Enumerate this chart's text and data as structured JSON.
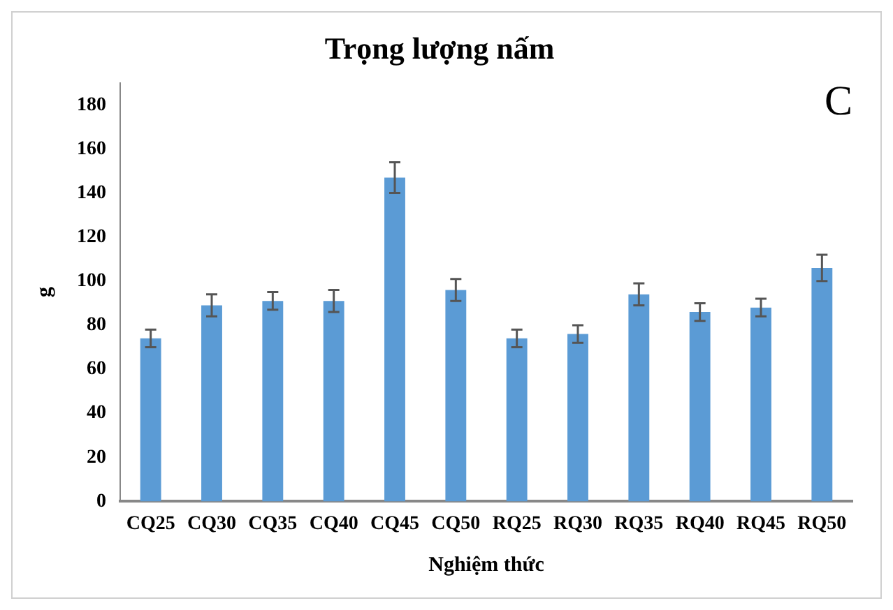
{
  "chart_data": {
    "type": "bar",
    "title": "Trọng lượng nấm",
    "xlabel": "Nghiệm thức",
    "ylabel": "g",
    "annotations": [
      "C"
    ],
    "categories": [
      "CQ25",
      "CQ30",
      "CQ35",
      "CQ40",
      "CQ45",
      "CQ50",
      "RQ25",
      "RQ30",
      "RQ35",
      "RQ40",
      "RQ45",
      "RQ50"
    ],
    "values": [
      74,
      89,
      91,
      91,
      147,
      96,
      74,
      76,
      94,
      86,
      88,
      106
    ],
    "errors": [
      4,
      5,
      4,
      5,
      7,
      5,
      4,
      4,
      5,
      4,
      4,
      6
    ],
    "color": "#5b9bd5",
    "ylim": [
      0,
      190
    ],
    "yticks": [
      0,
      20,
      40,
      60,
      80,
      100,
      120,
      140,
      160,
      180
    ],
    "grid": false,
    "legend": false
  }
}
